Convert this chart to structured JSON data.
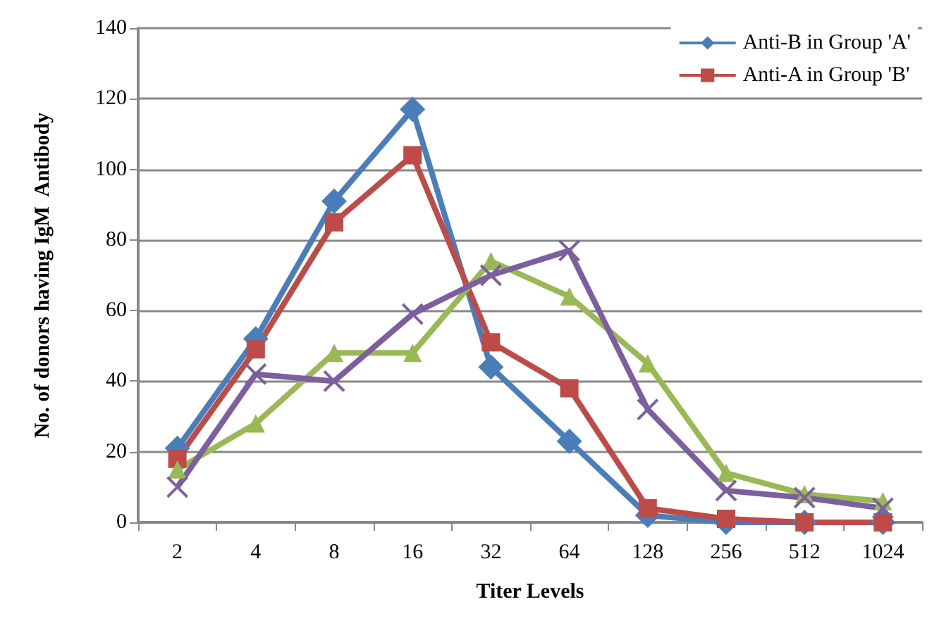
{
  "chart_data": {
    "type": "line",
    "xlabel": "Titer Levels",
    "ylabel": "No. of donors having IgM  Antibody",
    "categories": [
      "2",
      "4",
      "8",
      "16",
      "32",
      "64",
      "128",
      "256",
      "512",
      "1024"
    ],
    "series": [
      {
        "name": "Anti-B in Group 'A'",
        "color": "#4a7ebb",
        "marker": "diamond",
        "values": [
          21,
          52,
          91,
          117,
          44,
          23,
          2,
          0,
          0,
          0
        ]
      },
      {
        "name": "Anti-A in Group 'B'",
        "color": "#be4b48",
        "marker": "square",
        "values": [
          18,
          49,
          85,
          104,
          51,
          38,
          4,
          1,
          0,
          0
        ]
      },
      {
        "color": "#98b954",
        "marker": "triangle",
        "values": [
          15,
          28,
          48,
          48,
          74,
          64,
          45,
          14,
          8,
          6
        ]
      },
      {
        "color": "#7d5fa0",
        "marker": "cross",
        "values": [
          10,
          42,
          40,
          59,
          70,
          77,
          32,
          9,
          7,
          4
        ]
      }
    ],
    "ylim": [
      0,
      140
    ],
    "yticks": [
      0,
      20,
      40,
      60,
      80,
      100,
      120,
      140
    ],
    "grid": "y",
    "legend": "top right"
  }
}
